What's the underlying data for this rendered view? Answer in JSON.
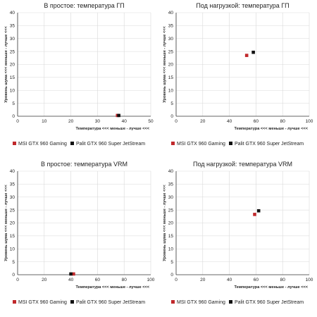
{
  "legend": {
    "items": [
      {
        "label": "MSI GTX 960 Gaming",
        "color": "#c0282b"
      },
      {
        "label": "Palit GTX 960 Super JetStream",
        "color": "#111111"
      }
    ]
  },
  "chart_data": [
    {
      "type": "scatter",
      "title": "В простое: температура ГП",
      "xlabel": "Температура  <<<  меньше - лучше  <<<",
      "ylabel": "Уровень шума <<< меньше - лучше <<<",
      "xlim": [
        0,
        50
      ],
      "xticks": [
        0,
        10,
        20,
        30,
        40,
        50
      ],
      "ylim": [
        0,
        40
      ],
      "yticks": [
        0,
        5,
        10,
        15,
        20,
        25,
        30,
        35,
        40
      ],
      "series": [
        {
          "name": "MSI GTX 960 Gaming",
          "points": [
            [
              37.5,
              0.3
            ]
          ]
        },
        {
          "name": "Palit GTX 960 Super JetStream",
          "points": [
            [
              38,
              0.3
            ]
          ]
        }
      ]
    },
    {
      "type": "scatter",
      "title": "Под нагрузкой: температура ГП",
      "xlabel": "Температура  <<<  меньше - лучше  <<<",
      "ylabel": "Уровень шума <<< меньше - лучше <<<",
      "xlim": [
        0,
        100
      ],
      "xticks": [
        0,
        20,
        40,
        60,
        80,
        100
      ],
      "ylim": [
        0,
        40
      ],
      "yticks": [
        0,
        5,
        10,
        15,
        20,
        25,
        30,
        35,
        40
      ],
      "series": [
        {
          "name": "MSI GTX 960 Gaming",
          "points": [
            [
              53,
              23.5
            ]
          ]
        },
        {
          "name": "Palit GTX 960 Super JetStream",
          "points": [
            [
              58,
              24.7
            ]
          ]
        }
      ]
    },
    {
      "type": "scatter",
      "title": "В простое: температура VRM",
      "xlabel": "Температура  <<<  меньше - лучше  <<<",
      "ylabel": "Уровень шума <<< меньше - лучше <<<",
      "xlim": [
        0,
        100
      ],
      "xticks": [
        0,
        20,
        40,
        60,
        80,
        100
      ],
      "ylim": [
        0,
        40
      ],
      "yticks": [
        0,
        5,
        10,
        15,
        20,
        25,
        30,
        35,
        40
      ],
      "series": [
        {
          "name": "MSI GTX 960 Gaming",
          "points": [
            [
              42,
              0.3
            ]
          ]
        },
        {
          "name": "Palit GTX 960 Super JetStream",
          "points": [
            [
              40,
              0.3
            ]
          ]
        }
      ]
    },
    {
      "type": "scatter",
      "title": "Под нагрузкой: температура VRM",
      "xlabel": "Температура  <<<  меньше - лучше  <<<",
      "ylabel": "Уровень шума <<< меньше - лучше <<<",
      "xlim": [
        0,
        100
      ],
      "xticks": [
        0,
        20,
        40,
        60,
        80,
        100
      ],
      "ylim": [
        0,
        40
      ],
      "yticks": [
        0,
        5,
        10,
        15,
        20,
        25,
        30,
        35,
        40
      ],
      "series": [
        {
          "name": "MSI GTX 960 Gaming",
          "points": [
            [
              59,
              23.3
            ]
          ]
        },
        {
          "name": "Palit GTX 960 Super JetStream",
          "points": [
            [
              62,
              24.7
            ]
          ]
        }
      ]
    }
  ]
}
